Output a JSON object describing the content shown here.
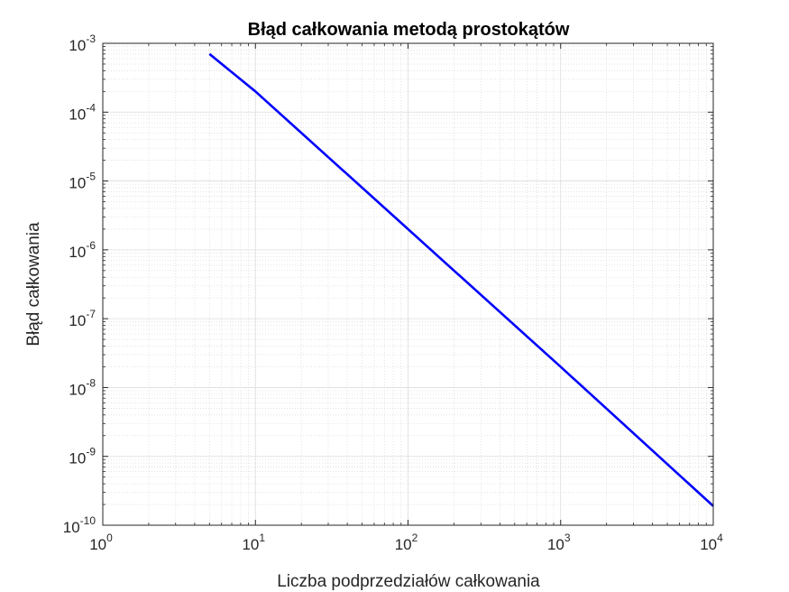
{
  "chart_data": {
    "type": "line",
    "title": "Błąd całkowania metodą prostokątów",
    "xlabel": "Liczba podprzedziałów całkowania",
    "ylabel": "Błąd całkowania",
    "xscale": "log",
    "yscale": "log",
    "xlim": [
      1,
      10000
    ],
    "ylim": [
      1e-10,
      0.001
    ],
    "grid": "on",
    "minor_grid": "on",
    "x_ticks": [
      {
        "base": "10",
        "exp": "0",
        "value": 1
      },
      {
        "base": "10",
        "exp": "1",
        "value": 10
      },
      {
        "base": "10",
        "exp": "2",
        "value": 100
      },
      {
        "base": "10",
        "exp": "3",
        "value": 1000
      },
      {
        "base": "10",
        "exp": "4",
        "value": 10000
      }
    ],
    "y_ticks": [
      {
        "base": "10",
        "exp": "-10",
        "value": 1e-10
      },
      {
        "base": "10",
        "exp": "-9",
        "value": 1e-09
      },
      {
        "base": "10",
        "exp": "-8",
        "value": 1e-08
      },
      {
        "base": "10",
        "exp": "-7",
        "value": 1e-07
      },
      {
        "base": "10",
        "exp": "-6",
        "value": 1e-06
      },
      {
        "base": "10",
        "exp": "-5",
        "value": 1e-05
      },
      {
        "base": "10",
        "exp": "-4",
        "value": 0.0001
      },
      {
        "base": "10",
        "exp": "-3",
        "value": 0.001
      }
    ],
    "series": [
      {
        "color": "#0000ff",
        "x": [
          5,
          10,
          100,
          1000,
          10000
        ],
        "y": [
          0.0007,
          0.0002,
          2e-06,
          2e-08,
          1.9e-10
        ]
      }
    ]
  }
}
